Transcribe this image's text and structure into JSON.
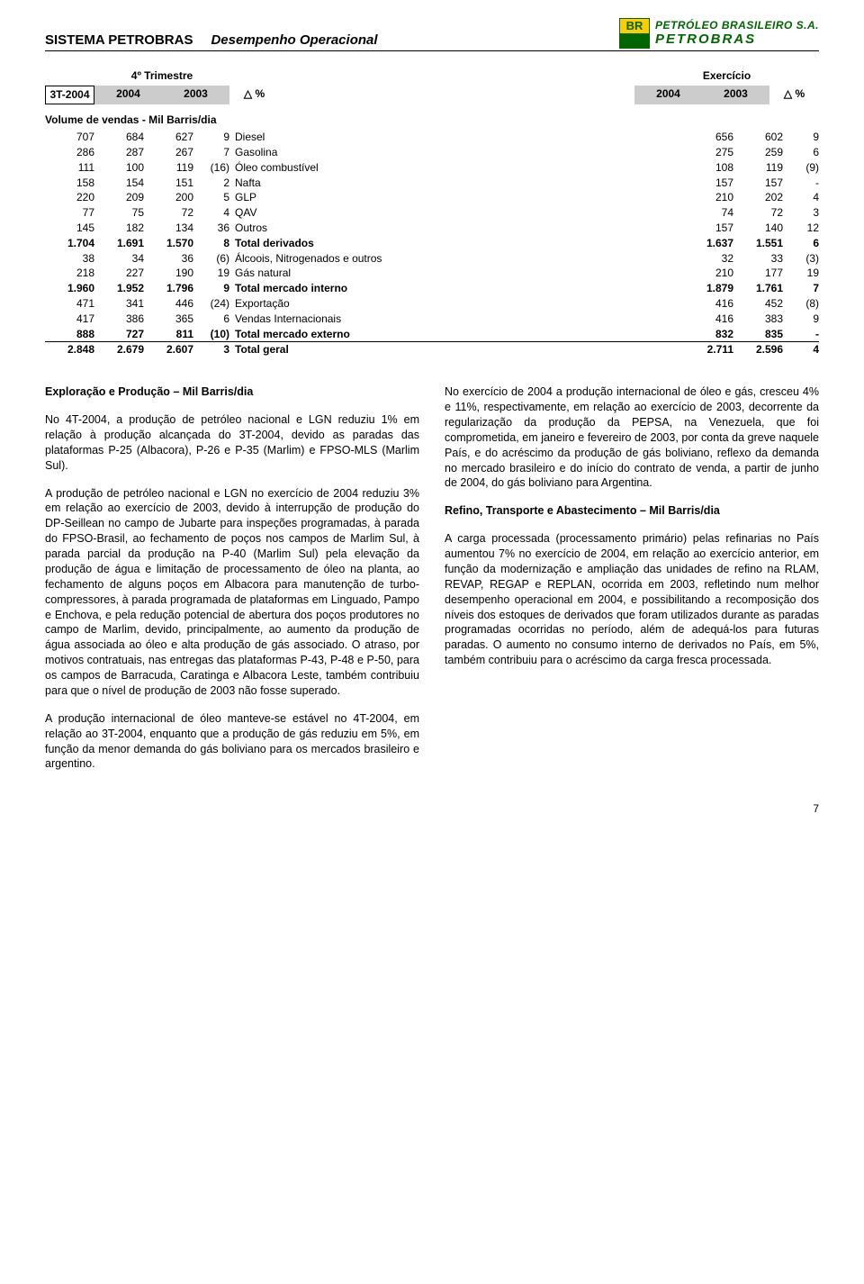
{
  "header": {
    "left": "SISTEMA PETROBRAS",
    "mid": "Desempenho Operacional",
    "logo_br": "BR",
    "logo_line1": "PETRÓLEO BRASILEIRO S.A.",
    "logo_line2": "PETROBRAS"
  },
  "table": {
    "group_left": "4º Trimestre",
    "group_right": "Exercício",
    "col_3t": "3T-2004",
    "col_2004": "2004",
    "col_2003": "2003",
    "col_delta": "%",
    "delta_symbol": "△",
    "section_title": "Volume de vendas - Mil Barris/dia",
    "rows": [
      {
        "a": "707",
        "b": "684",
        "c": "627",
        "d": "9",
        "label": "Diesel",
        "e": "656",
        "f": "602",
        "g": "9"
      },
      {
        "a": "286",
        "b": "287",
        "c": "267",
        "d": "7",
        "label": "Gasolina",
        "e": "275",
        "f": "259",
        "g": "6"
      },
      {
        "a": "111",
        "b": "100",
        "c": "119",
        "d": "(16)",
        "label": "Óleo combustível",
        "e": "108",
        "f": "119",
        "g": "(9)"
      },
      {
        "a": "158",
        "b": "154",
        "c": "151",
        "d": "2",
        "label": "Nafta",
        "e": "157",
        "f": "157",
        "g": "-"
      },
      {
        "a": "220",
        "b": "209",
        "c": "200",
        "d": "5",
        "label": "GLP",
        "e": "210",
        "f": "202",
        "g": "4"
      },
      {
        "a": "77",
        "b": "75",
        "c": "72",
        "d": "4",
        "label": "QAV",
        "e": "74",
        "f": "72",
        "g": "3"
      },
      {
        "a": "145",
        "b": "182",
        "c": "134",
        "d": "36",
        "label": "Outros",
        "e": "157",
        "f": "140",
        "g": "12"
      },
      {
        "a": "1.704",
        "b": "1.691",
        "c": "1.570",
        "d": "8",
        "label": "Total derivados",
        "e": "1.637",
        "f": "1.551",
        "g": "6",
        "bold": true
      },
      {
        "a": "38",
        "b": "34",
        "c": "36",
        "d": "(6)",
        "label": "Álcoois, Nitrogenados e outros",
        "e": "32",
        "f": "33",
        "g": "(3)"
      },
      {
        "a": "218",
        "b": "227",
        "c": "190",
        "d": "19",
        "label": "Gás natural",
        "e": "210",
        "f": "177",
        "g": "19"
      },
      {
        "a": "1.960",
        "b": "1.952",
        "c": "1.796",
        "d": "9",
        "label": "Total mercado interno",
        "e": "1.879",
        "f": "1.761",
        "g": "7",
        "bold": true
      },
      {
        "a": "471",
        "b": "341",
        "c": "446",
        "d": "(24)",
        "label": "Exportação",
        "e": "416",
        "f": "452",
        "g": "(8)"
      },
      {
        "a": "417",
        "b": "386",
        "c": "365",
        "d": "6",
        "label": "Vendas Internacionais",
        "e": "416",
        "f": "383",
        "g": "9"
      },
      {
        "a": "888",
        "b": "727",
        "c": "811",
        "d": "(10)",
        "label": "Total mercado externo",
        "e": "832",
        "f": "835",
        "g": "-",
        "bold": true
      },
      {
        "a": "2.848",
        "b": "2.679",
        "c": "2.607",
        "d": "3",
        "label": "Total geral",
        "e": "2.711",
        "f": "2.596",
        "g": "4",
        "bold": true,
        "total": true
      }
    ]
  },
  "body": {
    "left": {
      "title1": "Exploração e Produção – Mil Barris/dia",
      "p1": "No 4T-2004, a produção de petróleo nacional e LGN reduziu 1% em relação à produção alcançada do 3T-2004, devido as paradas das plataformas P-25 (Albacora), P-26 e P-35 (Marlim) e FPSO-MLS (Marlim Sul).",
      "p2": "A produção de petróleo nacional e LGN no exercício de 2004 reduziu 3% em relação ao exercício de 2003, devido à interrupção de produção do DP-Seillean no campo de Jubarte para inspeções programadas, à parada do FPSO-Brasil, ao fechamento de poços nos campos de Marlim Sul, à parada parcial da produção na P-40 (Marlim Sul) pela elevação da produção de água e limitação de processamento de óleo na planta, ao fechamento de alguns poços em Albacora para manutenção de turbo-compressores, à parada programada de plataformas em Linguado, Pampo e Enchova, e pela redução potencial de abertura dos poços produtores no campo de Marlim, devido, principalmente, ao aumento da produção de água associada ao óleo e alta produção de gás associado. O atraso, por motivos contratuais, nas entregas das plataformas P-43, P-48 e P-50, para os campos de Barracuda, Caratinga e Albacora Leste, também contribuiu para que o nível de produção de 2003 não fosse superado.",
      "p3": "A produção internacional de óleo manteve-se estável no 4T-2004, em relação ao 3T-2004, enquanto que a produção de gás reduziu em 5%, em função da menor demanda do gás boliviano para os mercados brasileiro e argentino."
    },
    "right": {
      "p1": "No exercício de 2004 a produção internacional de óleo e gás, cresceu 4% e 11%, respectivamente, em relação ao exercício de 2003, decorrente da regularização da produção da PEPSA, na Venezuela, que foi comprometida, em janeiro e fevereiro de 2003, por conta da greve naquele País, e do acréscimo da produção de gás boliviano, reflexo da demanda no mercado brasileiro e do início do contrato de venda, a partir de junho de 2004, do gás boliviano para Argentina.",
      "title2": "Refino, Transporte e Abastecimento – Mil Barris/dia",
      "p2": "A carga processada (processamento primário) pelas refinarias no País aumentou 7% no exercício de 2004, em relação ao exercício anterior, em função da modernização e ampliação das unidades de refino na RLAM, REVAP, REGAP e REPLAN, ocorrida em 2003, refletindo num melhor desempenho operacional em 2004, e possibilitando a recomposição dos níveis dos estoques de derivados que foram utilizados durante as paradas programadas ocorridas no período, além de adequá-los para futuras paradas. O aumento no consumo interno de derivados no País, em 5%, também contribuiu para o acréscimo da carga fresca processada."
    }
  },
  "page_number": "7"
}
